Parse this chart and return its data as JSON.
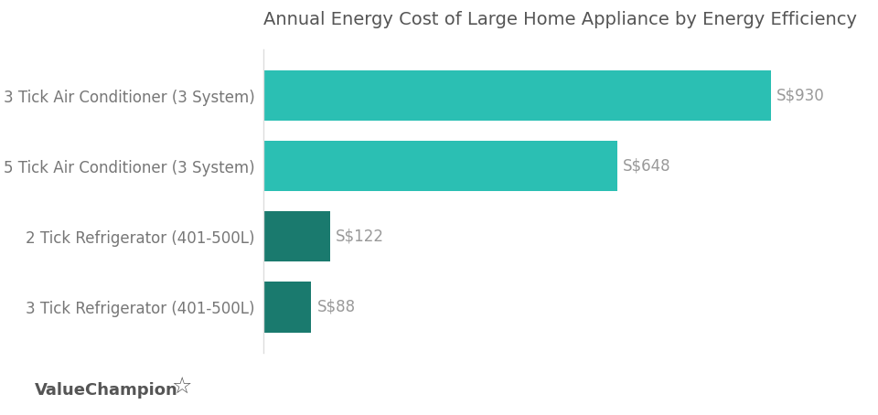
{
  "title": "Annual Energy Cost of Large Home Appliance by Energy Efficiency",
  "categories": [
    "3 Tick Air Conditioner (3 System)",
    "5 Tick Air Conditioner (3 System)",
    "2 Tick Refrigerator (401-500L)",
    "3 Tick Refrigerator (401-500L)"
  ],
  "values": [
    930,
    648,
    122,
    88
  ],
  "labels": [
    "S$930",
    "S$648",
    "S$122",
    "S$88"
  ],
  "bar_colors": [
    "#2bbfb3",
    "#2bbfb3",
    "#1a7a6e",
    "#1a7a6e"
  ],
  "background_color": "#ffffff",
  "title_fontsize": 14,
  "label_fontsize": 12,
  "tick_fontsize": 12,
  "label_color": "#999999",
  "title_color": "#555555",
  "tick_color": "#777777",
  "watermark": "ValueChampion",
  "watermark_color": "#555555",
  "xlim": [
    0,
    1030
  ]
}
